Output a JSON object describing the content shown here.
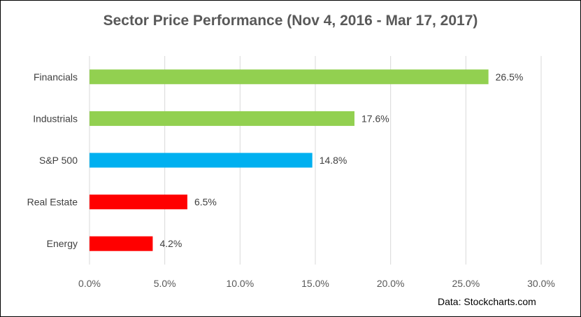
{
  "chart_data": {
    "type": "bar",
    "orientation": "horizontal",
    "title": "Sector Price Performance (Nov 4, 2016 - Mar 17, 2017)",
    "categories": [
      "Financials",
      "Industrials",
      "S&P 500",
      "Real Estate",
      "Energy"
    ],
    "values": [
      26.5,
      17.6,
      14.8,
      6.5,
      4.2
    ],
    "data_labels": [
      "26.5%",
      "17.6%",
      "14.8%",
      "6.5%",
      "4.2%"
    ],
    "bar_colors": [
      "#92d050",
      "#92d050",
      "#00b0f0",
      "#ff0000",
      "#ff0000"
    ],
    "xlim": [
      0,
      30
    ],
    "x_ticks": [
      0,
      5,
      10,
      15,
      20,
      25,
      30
    ],
    "x_tick_labels": [
      "0.0%",
      "5.0%",
      "10.0%",
      "15.0%",
      "20.0%",
      "25.0%",
      "30.0%"
    ],
    "grid": true,
    "legend": "none",
    "source_note": "Data: Stockcharts.com"
  }
}
